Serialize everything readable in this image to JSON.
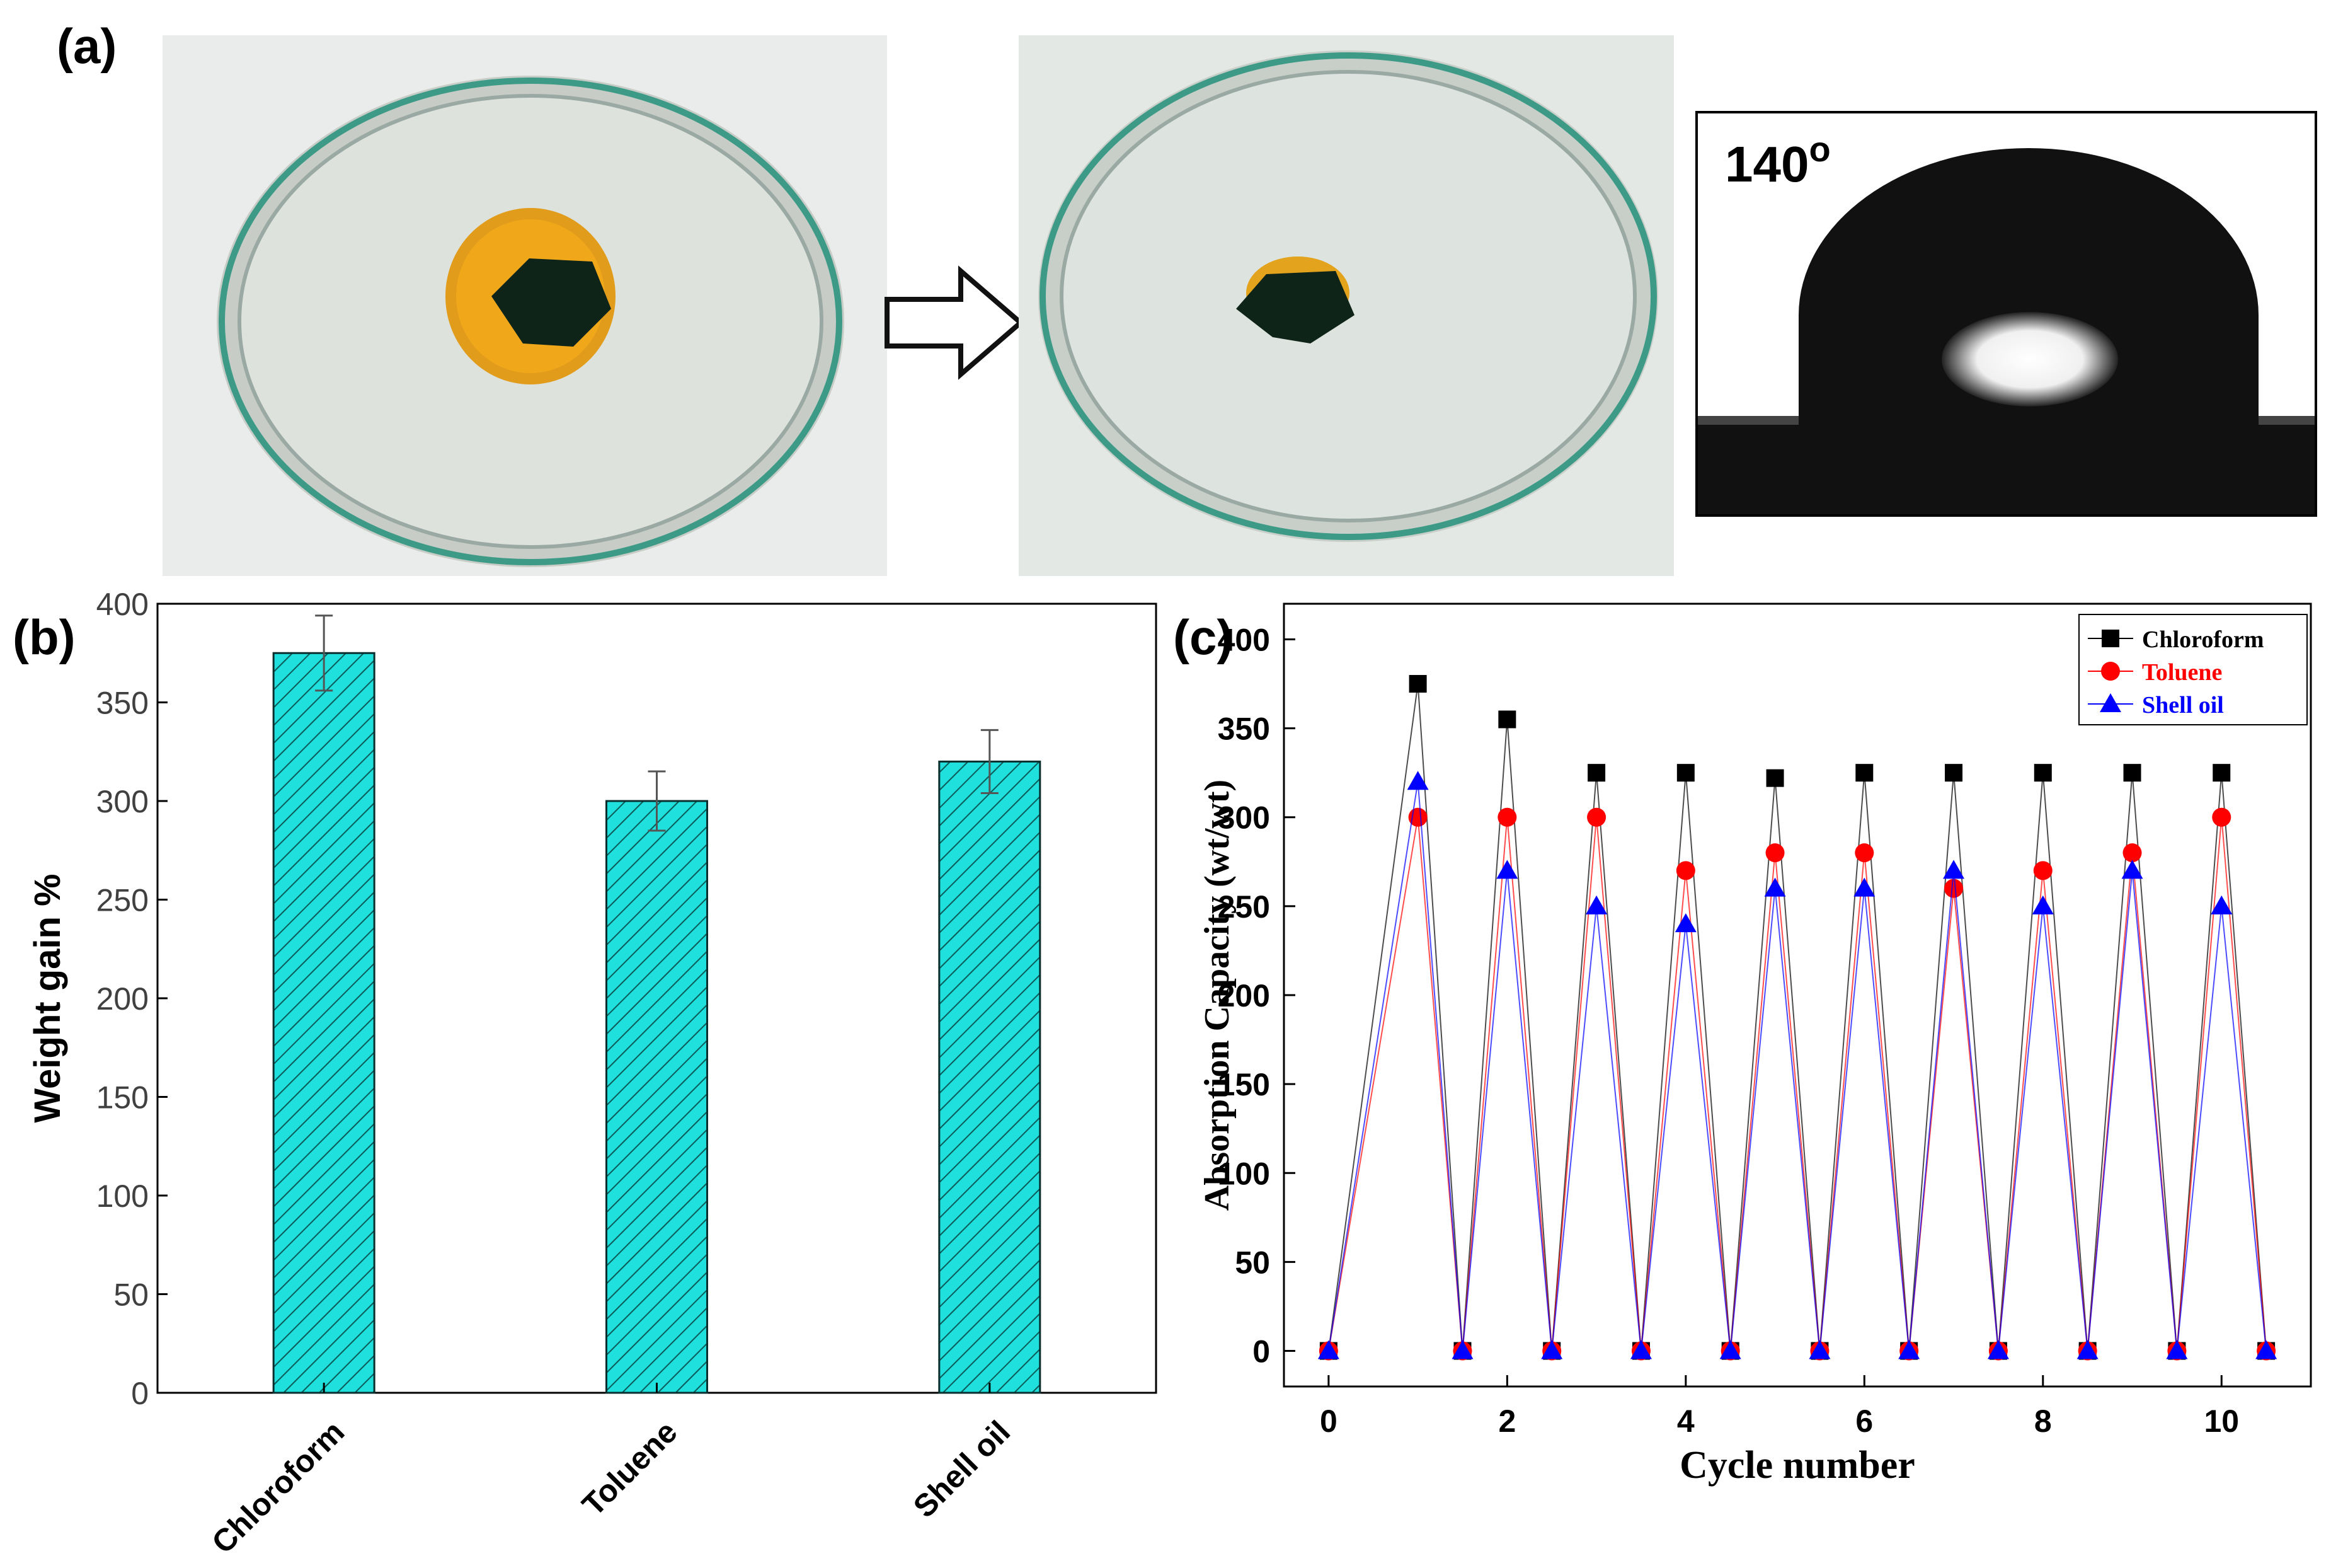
{
  "panel_labels": {
    "a": "(a)",
    "b": "(b)",
    "c": "(c)"
  },
  "photos": {
    "before": {
      "name": "petri dish with oil spill and sponge (before)"
    },
    "after": {
      "name": "petri dish after oil absorption"
    },
    "contact_angle": {
      "label": "140",
      "unit_symbol": "o"
    }
  },
  "colors": {
    "bar_fill": "#1fe0dc",
    "chloroform": "#000000",
    "toluene": "#ff0000",
    "shell_oil": "#0000ff"
  },
  "chart_data": [
    {
      "type": "bar",
      "panel": "b",
      "categories": [
        "Chloroform",
        "Toluene",
        "Shell oil"
      ],
      "values": [
        375,
        300,
        320
      ],
      "errors": [
        19,
        15,
        16
      ],
      "ylabel": "Weight gain %",
      "ylim": [
        0,
        400
      ],
      "yticks": [
        "0",
        "50",
        "100",
        "150",
        "200",
        "250",
        "300",
        "350",
        "400"
      ]
    },
    {
      "type": "line",
      "panel": "c",
      "xlabel": "Cycle number",
      "ylabel": "Absorption Capacity (wt/wt)",
      "xlim": [
        -0.5,
        11
      ],
      "ylim": [
        -20,
        420
      ],
      "xticks": [
        "0",
        "2",
        "4",
        "6",
        "8",
        "10"
      ],
      "yticks": [
        "0",
        "50",
        "100",
        "150",
        "200",
        "250",
        "300",
        "350",
        "400"
      ],
      "x": [
        0,
        1,
        1.5,
        2,
        2.5,
        3,
        3.5,
        4,
        4.5,
        5,
        5.5,
        6,
        6.5,
        7,
        7.5,
        8,
        8.5,
        9,
        9.5,
        10,
        10.5
      ],
      "series": [
        {
          "name": "Chloroform",
          "marker": "square",
          "color": "#000000",
          "values": [
            0,
            375,
            0,
            355,
            0,
            325,
            0,
            325,
            0,
            322,
            0,
            325,
            0,
            325,
            0,
            325,
            0,
            325,
            0,
            325,
            0
          ]
        },
        {
          "name": "Toluene",
          "marker": "circle",
          "color": "#ff0000",
          "values": [
            0,
            300,
            0,
            300,
            0,
            300,
            0,
            270,
            0,
            280,
            0,
            280,
            0,
            260,
            0,
            270,
            0,
            280,
            0,
            300,
            0
          ]
        },
        {
          "name": "Shell oil",
          "marker": "triangle",
          "color": "#0000ff",
          "values": [
            0,
            320,
            0,
            270,
            0,
            250,
            0,
            240,
            0,
            260,
            0,
            260,
            0,
            270,
            0,
            250,
            0,
            270,
            0,
            250,
            0
          ]
        }
      ]
    }
  ]
}
